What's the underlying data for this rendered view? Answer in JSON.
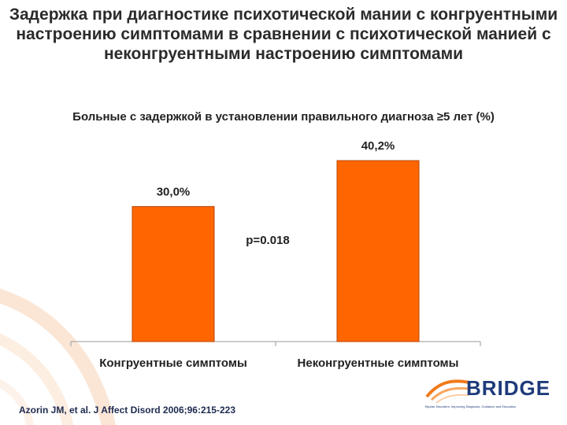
{
  "page": {
    "title": "Задержка при диагностике психотической мании с конгруентными настроению симптомами в сравнении с психотической манией с неконгруентными настроению симптомами",
    "citation": "Azorin JM, et al. J Affect Disord 2006;96:215-223"
  },
  "logo": {
    "name": "BRIDGE",
    "tagline": "Bipolar Disorders: Improving Diagnosis, Guidance and Education"
  },
  "chart_data": {
    "type": "bar",
    "title": "Больные с задержкой в установлении правильного диагноза ≥5 лет (%)",
    "categories": [
      "Конгруентные симптомы",
      "Неконгруентные симптомы"
    ],
    "values": [
      30.0,
      40.2
    ],
    "data_labels": [
      "30,0%",
      "40,2%"
    ],
    "annotation": "p=0.018",
    "ylim": [
      0,
      50
    ],
    "grid": false,
    "bar_color": "#ff6600",
    "bar_border_color": "#b84400"
  }
}
